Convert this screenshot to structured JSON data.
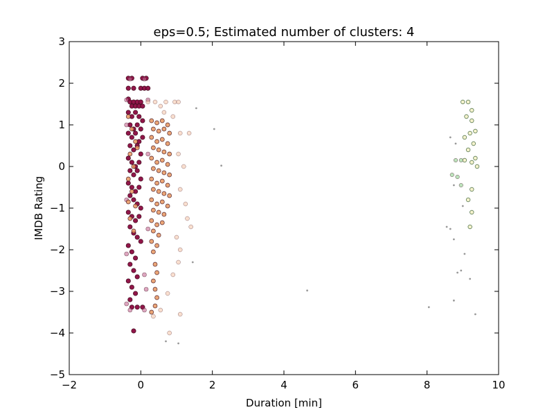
{
  "chart_data": {
    "type": "scatter",
    "title": "eps=0.5; Estimated number of clusters: 4",
    "xlabel": "Duration [min]",
    "ylabel": "IMDB Rating",
    "xlim": [
      -2,
      10
    ],
    "ylim": [
      -5,
      3
    ],
    "xticks": [
      -2,
      0,
      2,
      4,
      6,
      8,
      10
    ],
    "yticks": [
      -5,
      -4,
      -3,
      -2,
      -1,
      0,
      1,
      2,
      3
    ],
    "xtick_labels": [
      "−2",
      "0",
      "2",
      "4",
      "6",
      "8",
      "10"
    ],
    "ytick_labels": [
      "−5",
      "−4",
      "−3",
      "−2",
      "−1",
      "0",
      "1",
      "2",
      "3"
    ],
    "grid": false,
    "legend": "none",
    "series": [
      {
        "color": "#8b0a3f",
        "points": [
          [
            -0.35,
            2.12
          ],
          [
            -0.25,
            2.12
          ],
          [
            0.05,
            2.12
          ],
          [
            0.15,
            2.12
          ],
          [
            -0.35,
            1.88
          ],
          [
            -0.2,
            1.88
          ],
          [
            0.0,
            1.88
          ],
          [
            0.1,
            1.88
          ],
          [
            0.2,
            1.88
          ],
          [
            -0.35,
            1.62
          ],
          [
            -0.3,
            1.55
          ],
          [
            -0.25,
            1.45
          ],
          [
            -0.2,
            1.55
          ],
          [
            -0.15,
            1.45
          ],
          [
            -0.1,
            1.55
          ],
          [
            -0.05,
            1.45
          ],
          [
            0.0,
            1.55
          ],
          [
            0.05,
            1.45
          ],
          [
            -0.35,
            1.3
          ],
          [
            -0.25,
            1.2
          ],
          [
            -0.15,
            1.3
          ],
          [
            -0.05,
            1.2
          ],
          [
            0.05,
            1.1
          ],
          [
            -0.3,
            1.0
          ],
          [
            -0.2,
            0.9
          ],
          [
            -0.1,
            1.0
          ],
          [
            0.0,
            0.9
          ],
          [
            -0.35,
            0.8
          ],
          [
            -0.25,
            0.7
          ],
          [
            -0.15,
            0.8
          ],
          [
            -0.05,
            0.6
          ],
          [
            0.05,
            0.7
          ],
          [
            -0.3,
            0.5
          ],
          [
            -0.2,
            0.4
          ],
          [
            -0.1,
            0.5
          ],
          [
            0.0,
            0.3
          ],
          [
            -0.35,
            0.2
          ],
          [
            -0.25,
            0.1
          ],
          [
            -0.15,
            0.0
          ],
          [
            -0.05,
            0.1
          ],
          [
            -0.3,
            -0.1
          ],
          [
            -0.2,
            -0.2
          ],
          [
            -0.1,
            -0.1
          ],
          [
            0.0,
            -0.3
          ],
          [
            -0.35,
            -0.4
          ],
          [
            -0.25,
            -0.5
          ],
          [
            -0.15,
            -0.6
          ],
          [
            -0.05,
            -0.5
          ],
          [
            -0.3,
            -0.7
          ],
          [
            -0.2,
            -0.8
          ],
          [
            -0.1,
            -0.9
          ],
          [
            0.0,
            -1.0
          ],
          [
            -0.35,
            -1.1
          ],
          [
            -0.25,
            -1.2
          ],
          [
            -0.15,
            -1.3
          ],
          [
            -0.05,
            -1.2
          ],
          [
            -0.3,
            -1.45
          ],
          [
            -0.2,
            -1.6
          ],
          [
            -0.1,
            -1.7
          ],
          [
            0.0,
            -1.8
          ],
          [
            -0.35,
            -1.9
          ],
          [
            -0.25,
            -2.05
          ],
          [
            -0.15,
            -2.2
          ],
          [
            -0.3,
            -2.35
          ],
          [
            -0.2,
            -2.5
          ],
          [
            -0.1,
            -2.65
          ],
          [
            -0.35,
            -2.75
          ],
          [
            -0.25,
            -2.9
          ],
          [
            -0.15,
            -3.05
          ],
          [
            -0.3,
            -3.2
          ],
          [
            -0.25,
            -3.38
          ],
          [
            -0.1,
            -3.38
          ],
          [
            0.05,
            -3.38
          ],
          [
            -0.2,
            -3.95
          ]
        ]
      },
      {
        "color": "#c76b95",
        "points": [
          [
            -0.3,
            2.1
          ],
          [
            0.1,
            2.1
          ],
          [
            -0.4,
            1.6
          ],
          [
            0.2,
            1.6
          ],
          [
            -0.4,
            1.0
          ],
          [
            0.2,
            0.3
          ],
          [
            -0.4,
            -0.8
          ],
          [
            0.2,
            -1.5
          ],
          [
            -0.4,
            -2.1
          ],
          [
            0.1,
            -2.6
          ],
          [
            -0.4,
            -3.3
          ],
          [
            0.1,
            -3.45
          ],
          [
            -0.3,
            -3.45
          ],
          [
            0.15,
            -2.95
          ]
        ]
      },
      {
        "color": "#e8965f",
        "points": [
          [
            0.3,
            1.1
          ],
          [
            0.45,
            1.05
          ],
          [
            0.6,
            1.1
          ],
          [
            0.75,
            1.0
          ],
          [
            0.35,
            0.9
          ],
          [
            0.5,
            0.85
          ],
          [
            0.65,
            0.9
          ],
          [
            0.8,
            0.8
          ],
          [
            0.3,
            0.7
          ],
          [
            0.45,
            0.6
          ],
          [
            0.6,
            0.65
          ],
          [
            0.75,
            0.55
          ],
          [
            0.35,
            0.45
          ],
          [
            0.5,
            0.4
          ],
          [
            0.65,
            0.35
          ],
          [
            0.8,
            0.3
          ],
          [
            0.3,
            0.2
          ],
          [
            0.45,
            0.1
          ],
          [
            0.6,
            0.15
          ],
          [
            0.75,
            0.05
          ],
          [
            0.35,
            -0.05
          ],
          [
            0.5,
            -0.1
          ],
          [
            0.65,
            -0.15
          ],
          [
            0.8,
            -0.2
          ],
          [
            0.3,
            -0.3
          ],
          [
            0.45,
            -0.4
          ],
          [
            0.6,
            -0.35
          ],
          [
            0.75,
            -0.45
          ],
          [
            0.35,
            -0.55
          ],
          [
            0.5,
            -0.6
          ],
          [
            0.65,
            -0.65
          ],
          [
            0.8,
            -0.7
          ],
          [
            0.3,
            -0.8
          ],
          [
            0.45,
            -0.9
          ],
          [
            0.6,
            -0.85
          ],
          [
            0.75,
            -0.95
          ],
          [
            0.35,
            -1.05
          ],
          [
            0.5,
            -1.1
          ],
          [
            0.65,
            -1.15
          ],
          [
            0.3,
            -1.3
          ],
          [
            0.45,
            -1.4
          ],
          [
            0.6,
            -1.35
          ],
          [
            0.35,
            -1.55
          ],
          [
            0.5,
            -1.65
          ],
          [
            0.3,
            -1.8
          ],
          [
            0.45,
            -1.9
          ],
          [
            0.35,
            -2.05
          ],
          [
            0.4,
            -2.35
          ],
          [
            0.45,
            -2.55
          ],
          [
            0.35,
            -2.75
          ],
          [
            0.4,
            -2.95
          ],
          [
            0.45,
            -3.15
          ],
          [
            0.4,
            -3.35
          ],
          [
            0.3,
            -3.5
          ],
          [
            -0.35,
            1.2
          ],
          [
            -0.25,
            0.9
          ],
          [
            -0.15,
            0.6
          ],
          [
            -0.3,
            0.3
          ],
          [
            -0.2,
            0.0
          ],
          [
            -0.35,
            -0.3
          ],
          [
            -0.25,
            -0.6
          ],
          [
            -0.15,
            -0.95
          ],
          [
            -0.3,
            -1.25
          ],
          [
            -0.2,
            -1.55
          ],
          [
            -0.35,
            -0.85
          ],
          [
            -0.1,
            0.45
          ]
        ]
      },
      {
        "color": "#f4c4a8",
        "points": [
          [
            0.2,
            1.55
          ],
          [
            0.4,
            1.55
          ],
          [
            0.55,
            1.45
          ],
          [
            0.7,
            1.55
          ],
          [
            0.95,
            1.55
          ],
          [
            1.05,
            1.55
          ],
          [
            0.65,
            1.3
          ],
          [
            0.9,
            1.2
          ],
          [
            1.1,
            0.8
          ],
          [
            1.35,
            0.8
          ],
          [
            1.05,
            0.3
          ],
          [
            1.2,
            0.0
          ],
          [
            1.1,
            -0.55
          ],
          [
            1.25,
            -0.9
          ],
          [
            1.3,
            -1.25
          ],
          [
            1.4,
            -1.45
          ],
          [
            1.0,
            -1.7
          ],
          [
            1.1,
            -2.0
          ],
          [
            1.05,
            -2.3
          ],
          [
            0.9,
            -2.6
          ],
          [
            0.75,
            -3.05
          ],
          [
            0.55,
            -3.45
          ],
          [
            1.1,
            -3.55
          ],
          [
            0.8,
            -4.0
          ],
          [
            0.35,
            -3.6
          ]
        ]
      },
      {
        "color": "#2f5a2a",
        "points": [
          [
            9.0,
            1.55
          ],
          [
            9.15,
            1.55
          ],
          [
            9.25,
            1.35
          ],
          [
            9.1,
            1.2
          ],
          [
            9.25,
            1.1
          ],
          [
            9.35,
            0.85
          ],
          [
            9.2,
            0.8
          ],
          [
            9.05,
            0.7
          ],
          [
            9.3,
            0.55
          ],
          [
            9.15,
            0.4
          ],
          [
            9.35,
            0.2
          ],
          [
            9.05,
            0.15
          ],
          [
            9.25,
            0.1
          ],
          [
            9.4,
            0.0
          ],
          [
            9.25,
            -0.55
          ],
          [
            9.15,
            -0.8
          ],
          [
            9.25,
            -1.1
          ],
          [
            9.2,
            -1.45
          ]
        ]
      },
      {
        "color": "#9fd7a0",
        "points": [
          [
            8.8,
            0.15
          ],
          [
            8.95,
            0.15
          ],
          [
            8.7,
            -0.2
          ],
          [
            8.85,
            -0.25
          ],
          [
            8.95,
            -0.45
          ]
        ]
      },
      {
        "color": "#6e6e6e",
        "points": [
          [
            1.55,
            1.4
          ],
          [
            2.05,
            0.9
          ],
          [
            2.25,
            0.02
          ],
          [
            4.65,
            -2.98
          ],
          [
            8.05,
            -3.38
          ],
          [
            8.75,
            -3.22
          ],
          [
            9.35,
            -3.55
          ],
          [
            8.55,
            -1.45
          ],
          [
            8.65,
            -1.5
          ],
          [
            8.75,
            -1.75
          ],
          [
            8.85,
            -2.55
          ],
          [
            8.95,
            -2.5
          ],
          [
            9.05,
            -2.1
          ],
          [
            8.75,
            -0.45
          ],
          [
            8.65,
            0.7
          ],
          [
            8.8,
            0.55
          ],
          [
            9.0,
            -0.95
          ],
          [
            9.2,
            -2.7
          ],
          [
            1.45,
            -2.3
          ],
          [
            0.7,
            -4.2
          ],
          [
            1.05,
            -4.25
          ]
        ]
      }
    ]
  }
}
